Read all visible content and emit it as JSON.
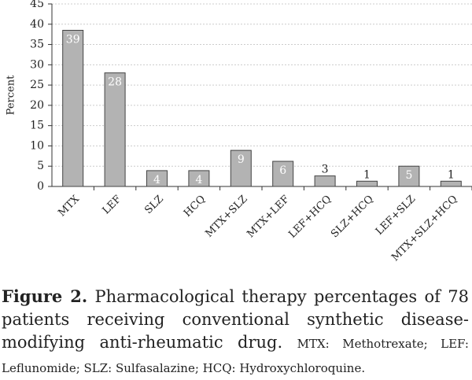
{
  "chart_data": {
    "type": "bar",
    "ylabel": "Percent",
    "categories": [
      "MTX",
      "LEF",
      "SLZ",
      "HCQ",
      "MTX+SLZ",
      "MTX+LEF",
      "LEF+HCQ",
      "SLZ+HCQ",
      "LEF+SLZ",
      "MTX+SLZ+HCQ"
    ],
    "values": [
      38.5,
      28,
      3.9,
      3.9,
      8.9,
      6.2,
      2.6,
      1.3,
      5.0,
      1.3
    ],
    "value_labels": [
      "39",
      "28",
      "4",
      "4",
      "9",
      "6",
      "3",
      "1",
      "5",
      "1"
    ],
    "color": "#b3b3b3",
    "ylim": [
      0,
      45
    ],
    "yticks": [
      0,
      5,
      10,
      15,
      20,
      25,
      30,
      35,
      40,
      45
    ],
    "grid": true
  },
  "caption": {
    "label": "Figure 2.",
    "text": "Pharmacological therapy percentages of 78 patients receiving conventional synthetic disease-modifying anti-rheumatic drug.",
    "abbreviations": "MTX: Methotrexate; LEF: Leflunomide; SLZ: Sulfasalazine; HCQ: Hydroxychloroquine."
  }
}
